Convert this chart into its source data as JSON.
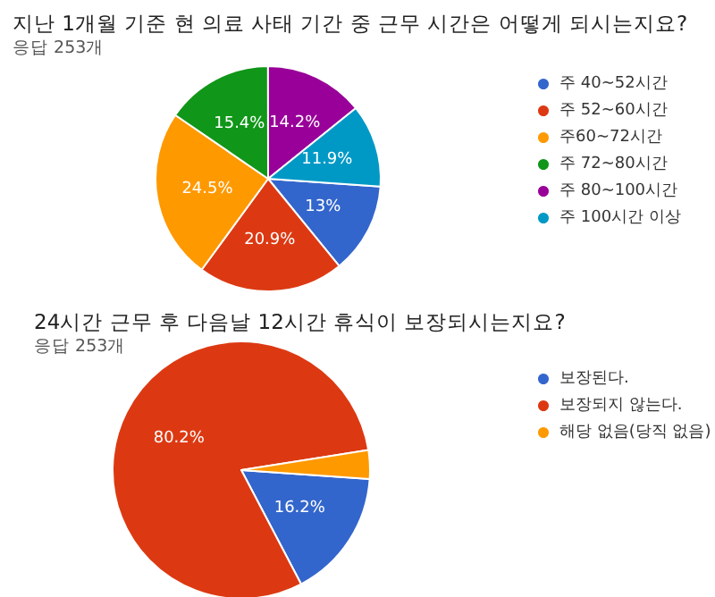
{
  "chart_data": [
    {
      "type": "pie",
      "title": "지난 1개월 기준 현 의료 사태 기간 중 근무 시간은 어떻게 되시는지요?",
      "subtitle": "응답 253개",
      "categories": [
        "주 40~52시간",
        "주 52~60시간",
        "주60~72시간",
        "주 72~80시간",
        "주 80~100시간",
        "주 100시간 이상"
      ],
      "values": [
        13,
        20.9,
        24.5,
        15.4,
        14.2,
        11.9
      ],
      "colors": [
        "#3366cc",
        "#dc3912",
        "#ff9900",
        "#109618",
        "#990099",
        "#0099c6"
      ],
      "value_labels": [
        "13%",
        "20.9%",
        "24.5%",
        "15.4%",
        "14.2%",
        "11.9%"
      ],
      "legend": "right"
    },
    {
      "type": "pie",
      "title": "24시간 근무 후 다음날 12시간 휴식이 보장되시는지요?",
      "subtitle": "응답 253개",
      "categories": [
        "보장된다.",
        "보장되지 않는다.",
        "해당 없음(당직 없음)"
      ],
      "values": [
        16.2,
        80.2,
        3.6
      ],
      "colors": [
        "#3366cc",
        "#dc3912",
        "#ff9900"
      ],
      "value_labels": [
        "16.2%",
        "80.2%",
        null
      ],
      "legend": "right"
    }
  ]
}
